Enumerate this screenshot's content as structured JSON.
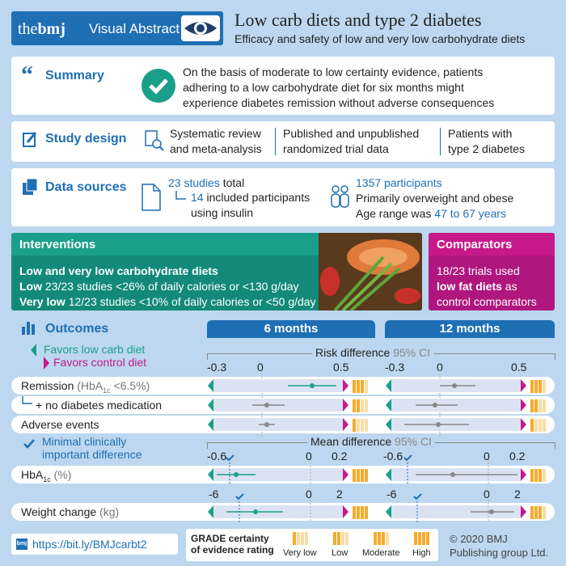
{
  "header": {
    "brand_the": "the",
    "brand_bmj": "bmj",
    "brand_label": "Visual Abstract",
    "title": "Low carb diets and type 2 diabetes",
    "subtitle": "Efficacy and safety of low and very low carbohydrate diets"
  },
  "summary": {
    "label": "Summary",
    "line1": "On the basis of moderate to low certainty evidence, patients",
    "line2": "adhering to a low carbohydrate diet for six months might",
    "line3": "experience diabetes remission without adverse consequences"
  },
  "design": {
    "label": "Study design",
    "c1a": "Systematic review",
    "c1b": "and meta-analysis",
    "c2a": "Published and unpublished",
    "c2b": "randomized trial data",
    "c3a": "Patients with",
    "c3b": "type 2 diabetes"
  },
  "sources": {
    "label": "Data sources",
    "studies_num": "23 studies",
    "studies_rest": " total",
    "insulin_num": "14",
    "insulin_rest1": " included participants",
    "insulin_rest2": "using insulin",
    "participants": "1357 participants",
    "overweight": "Primarily overweight and obese",
    "age_prefix": "Age range was ",
    "age_range": "47 to 67 years"
  },
  "interventions": {
    "label": "Interventions",
    "heading": "Low and very low carbohydrate diets",
    "low_label": "Low",
    "low_text": " 23/23 studies <26% of daily calories or <130 g/day",
    "vlow_label": "Very low",
    "vlow_text": " 12/23 studies <10% of daily calories or <50 g/day"
  },
  "comparators": {
    "label": "Comparators",
    "line1": "18/23 trials used",
    "bold": "low fat diets",
    "line2_rest": " as",
    "line3": "control comparators"
  },
  "outcomes": {
    "label": "Outcomes",
    "favors_low": "Favors low carb diet",
    "favors_control": "Favors control diet",
    "col_6": "6 months",
    "col_12": "12 months",
    "risk_diff": "Risk difference",
    "ci": "95% CI",
    "mean_diff": "Mean difference",
    "mcid": "Minimal clinically important difference",
    "rows": {
      "remission": "Remission",
      "remission_note": "(HbA",
      "remission_sub": "1c",
      "remission_note2": " <6.5%)",
      "no_med": "+ no diabetes medication",
      "adverse": "Adverse events",
      "hba1c": "HbA",
      "hba1c_sub": "1c",
      "hba1c_unit": " (%)",
      "weight": "Weight change",
      "weight_unit": " (kg)"
    },
    "ticks_rd": [
      "-0.3",
      "0",
      "0.5"
    ],
    "ticks_hba": [
      "-0.6",
      "0",
      "0.2"
    ],
    "ticks_wt": [
      "-6",
      "0",
      "2"
    ]
  },
  "footer": {
    "bmj_icon": "bmj",
    "link": "https://bit.ly/BMJcarbt2",
    "grade1": "GRADE certainty",
    "grade2": "of evidence rating",
    "very_low": "Very low",
    "low": "Low",
    "moderate": "Moderate",
    "high": "High",
    "copy1": "© 2020 BMJ",
    "copy2": "Publishing group Ltd."
  },
  "colors": {
    "brand_blue": "#1f6fb5",
    "teal": "#1aa08a",
    "pink": "#c8198a",
    "grade": "#f6ab2d"
  }
}
